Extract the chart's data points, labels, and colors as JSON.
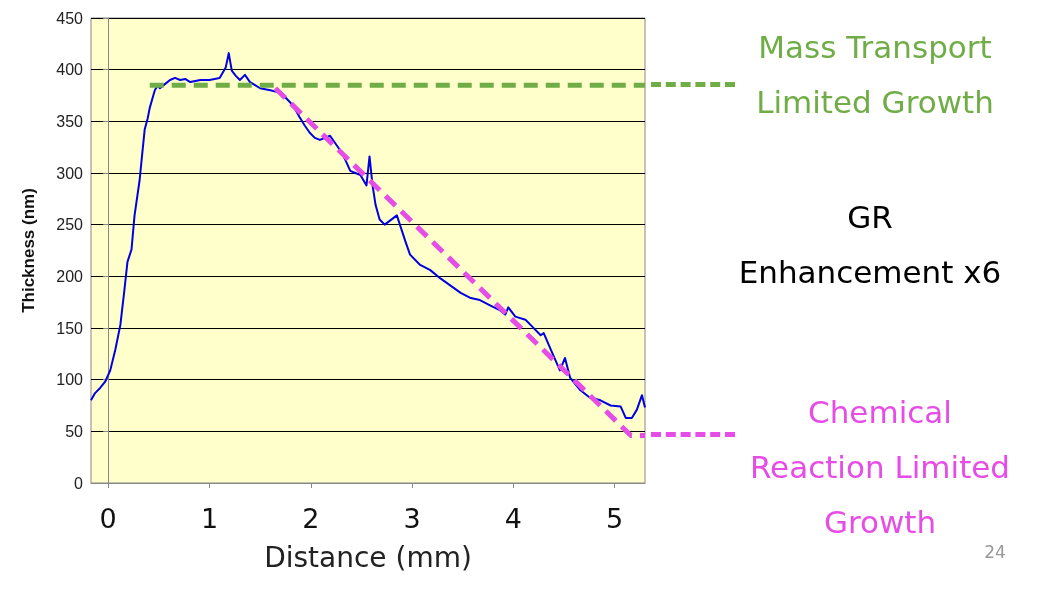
{
  "chart_data": {
    "type": "line",
    "xlabel": "Distance (mm)",
    "ylabel": "Thickness (nm)",
    "xlim": [
      -0.17,
      5.3
    ],
    "xticks": [
      0,
      1,
      2,
      3,
      4,
      5
    ],
    "ylim": [
      0,
      450
    ],
    "yticks": [
      0,
      50,
      100,
      150,
      200,
      250,
      300,
      350,
      400,
      450
    ],
    "grid": "y",
    "marker": "none",
    "series": [
      {
        "color": "#0000e0",
        "line_style": "solid",
        "x": [
          -0.17,
          -0.13,
          -0.08,
          -0.03,
          0.02,
          0.07,
          0.12,
          0.16,
          0.19,
          0.23,
          0.26,
          0.31,
          0.33,
          0.36,
          0.39,
          0.41,
          0.46,
          0.49,
          0.51,
          0.56,
          0.61,
          0.66,
          0.71,
          0.76,
          0.81,
          0.91,
          1.0,
          1.1,
          1.16,
          1.19,
          1.22,
          1.26,
          1.3,
          1.35,
          1.4,
          1.45,
          1.5,
          1.6,
          1.68,
          1.75,
          1.8,
          1.85,
          1.89,
          1.94,
          1.99,
          2.04,
          2.09,
          2.19,
          2.29,
          2.34,
          2.39,
          2.44,
          2.49,
          2.55,
          2.58,
          2.61,
          2.64,
          2.68,
          2.73,
          2.85,
          2.88,
          2.93,
          2.98,
          3.08,
          3.18,
          3.28,
          3.38,
          3.48,
          3.58,
          3.67,
          3.77,
          3.87,
          3.92,
          3.95,
          4.02,
          4.12,
          4.17,
          4.27,
          4.3,
          4.37,
          4.46,
          4.51,
          4.56,
          4.66,
          4.75,
          4.86,
          4.96,
          5.06,
          5.11,
          5.17,
          5.22,
          5.27,
          5.3
        ],
        "values": [
          80,
          87,
          92,
          98,
          109,
          129,
          153,
          187,
          214,
          226,
          259,
          293,
          313,
          342,
          353,
          363,
          380,
          385,
          382,
          386,
          390,
          392,
          390,
          391,
          388,
          390,
          390,
          392,
          402,
          416,
          399,
          394,
          390,
          395,
          388,
          385,
          382,
          380,
          378,
          373,
          368,
          361,
          354,
          346,
          339,
          334,
          332,
          336,
          322,
          313,
          302,
          300,
          298,
          288,
          316,
          288,
          269,
          255,
          250,
          259,
          250,
          235,
          221,
          211,
          206,
          198,
          191,
          184,
          179,
          177,
          172,
          167,
          163,
          170,
          161,
          158,
          153,
          143,
          145,
          129,
          109,
          121,
          102,
          90,
          83,
          80,
          75,
          74,
          63,
          63,
          71,
          85,
          73
        ]
      },
      {
        "color": "#70ad47",
        "line_style": "dashed",
        "x": [
          0.41,
          5.3
        ],
        "values": [
          385,
          385
        ]
      },
      {
        "color": "#e64ce6",
        "line_style": "dashed",
        "x": [
          1.65,
          5.16,
          5.3
        ],
        "values": [
          382,
          46,
          46
        ]
      }
    ],
    "annotations": [
      "Mass Transport\nLimited Growth",
      "GR\nEnhancement x6",
      "Chemical\nReaction Limited\nGrowth",
      "24"
    ]
  }
}
